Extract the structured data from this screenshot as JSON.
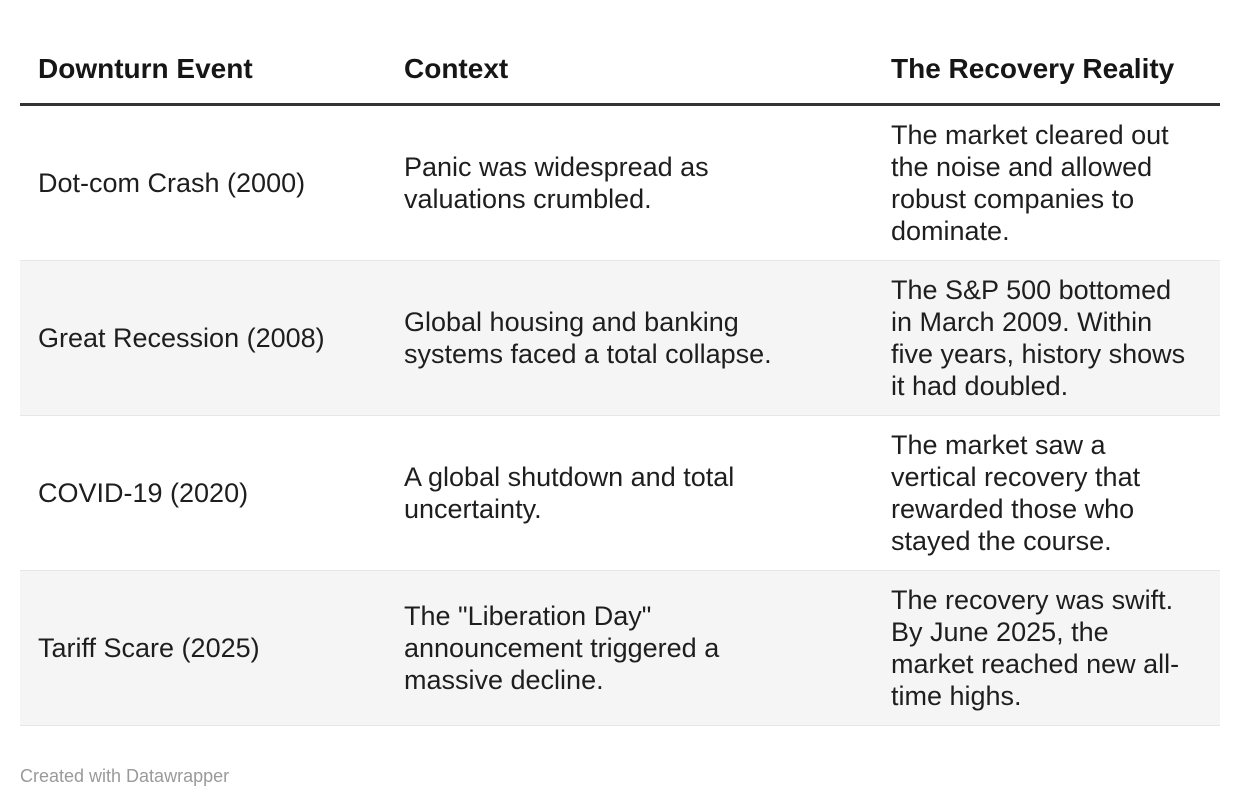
{
  "chart_data": {
    "type": "table",
    "columns": [
      "Downturn Event",
      "Context",
      "The Recovery Reality"
    ],
    "rows": [
      [
        "Dot-com Crash (2000)",
        "Panic was widespread as valuations crumbled.",
        "The market cleared out the noise and allowed robust companies to dominate."
      ],
      [
        "Great Recession (2008)",
        "Global housing and banking systems faced a total collapse.",
        "The S&P 500 bottomed in March 2009. Within five years, history shows it had doubled."
      ],
      [
        "COVID-19 (2020)",
        "A global shutdown and total uncertainty.",
        "The market saw a vertical recovery that rewarded those who stayed the course."
      ],
      [
        "Tariff Scare (2025)",
        "The \"Liberation Day\" announcement triggered a massive decline.",
        "The recovery was swift. By June 2025, the market reached new all-time highs."
      ]
    ],
    "layout": {
      "zebra_striping": true,
      "header_rule": true
    }
  },
  "colors": {
    "text": "#1e1e1e",
    "header_text": "#161616",
    "header_rule": "#333333",
    "stripe": "#f5f5f5",
    "row_border": "#e6e6e6",
    "footer_text": "#9a9a9a",
    "background": "#ffffff"
  },
  "footer": {
    "attribution": "Created with Datawrapper"
  }
}
